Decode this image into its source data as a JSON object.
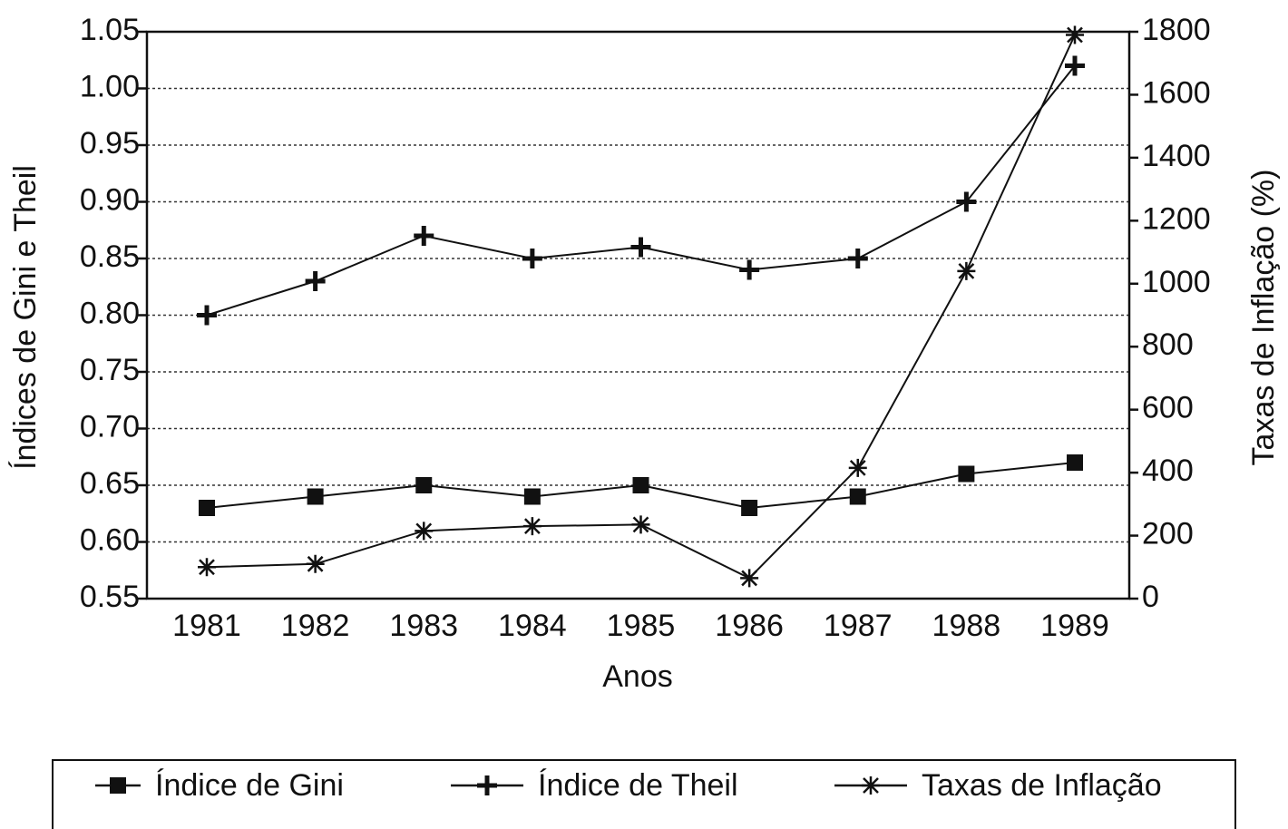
{
  "chart_data": {
    "type": "line",
    "xlabel": "Anos",
    "ylabel": "Índices de Gini e Theil",
    "y2label": "Taxas de Inflação (%)",
    "categories": [
      "1981",
      "1982",
      "1983",
      "1984",
      "1985",
      "1986",
      "1987",
      "1988",
      "1989"
    ],
    "series": [
      {
        "name": "Índice de Gini",
        "color": "#111111",
        "marker": "square",
        "values": [
          0.63,
          0.64,
          0.65,
          0.64,
          0.65,
          0.63,
          0.64,
          0.66,
          0.67
        ]
      },
      {
        "name": "Índice de Theil",
        "color": "#111111",
        "marker": "plus",
        "values": [
          0.8,
          0.83,
          0.87,
          0.85,
          0.86,
          0.84,
          0.85,
          0.9,
          1.02
        ]
      },
      {
        "name": "Taxas de Inflação",
        "color": "#111111",
        "marker": "asterisk",
        "axis": "y2",
        "values": [
          100,
          110,
          215,
          230,
          235,
          65,
          415,
          1040,
          1790
        ]
      }
    ],
    "ylim": [
      0.55,
      1.05
    ],
    "yticks": [
      0.55,
      {
        "value": 0.6,
        "label": "0.60"
      },
      0.65,
      {
        "value": 0.7,
        "label": "0.70"
      },
      0.75,
      {
        "value": 0.8,
        "label": "0.80"
      },
      0.85,
      {
        "value": 0.9,
        "label": "0.90"
      },
      0.95,
      {
        "value": 1,
        "label": "1.00"
      },
      1.05
    ],
    "y2lim": [
      0,
      1800
    ],
    "y2ticks": [
      0,
      200,
      400,
      600,
      800,
      1000,
      1200,
      1400,
      1600,
      1800
    ],
    "grid": true,
    "legend": "bottom"
  }
}
